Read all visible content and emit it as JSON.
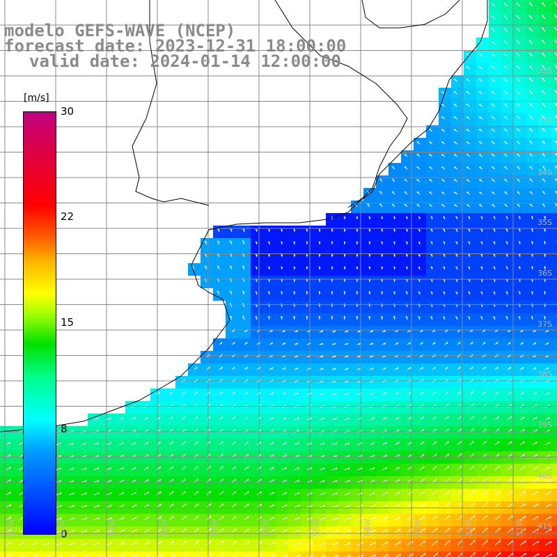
{
  "title": {
    "line1": "modelo GEFS-WAVE (NCEP)",
    "line2": "forecast date: 2023-12-31 18:00:00",
    "line3": "valid date: 2024-01-14 12:00:00"
  },
  "colorbar": {
    "unit": "[m/s]",
    "ticks": [
      "30",
      "22",
      "15",
      "8",
      "0"
    ],
    "tick_values": [
      30,
      22,
      15,
      8,
      0
    ],
    "vmin": 0,
    "vmax": 30,
    "colors": [
      "#0000ff",
      "#00a0ff",
      "#00ffff",
      "#00e000",
      "#ffff00",
      "#ff6000",
      "#ff0000",
      "#c00080"
    ]
  },
  "map": {
    "lat_labels": [
      "32S",
      "33S",
      "34S",
      "35S",
      "36S",
      "37S",
      "38S",
      "39S",
      "40S",
      "41S"
    ],
    "lon_labels": [
      "61W",
      "60W",
      "59W",
      "58W",
      "57W",
      "56W",
      "55W",
      "54W",
      "53W",
      "52W",
      "51W"
    ],
    "grid_color": "#888888",
    "coast_color": "#000000",
    "arrow_color": "#ffffff"
  }
}
